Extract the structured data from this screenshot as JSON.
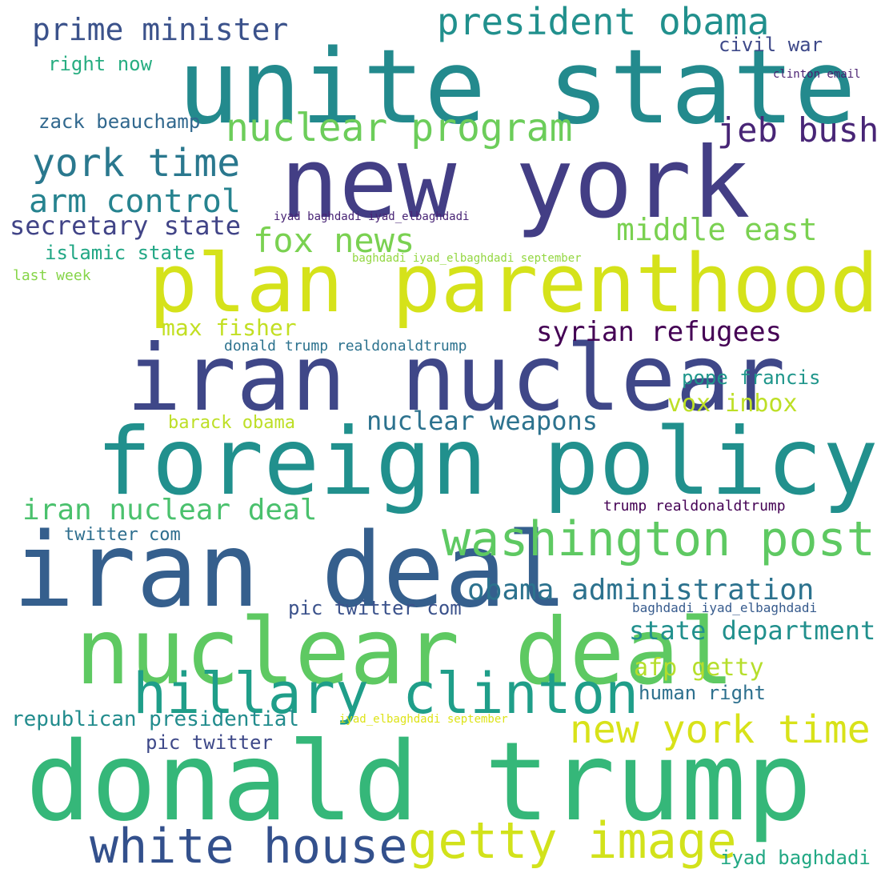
{
  "words": [
    {
      "text": "unite state",
      "color": "#238a8d"
    },
    {
      "text": "new york",
      "color": "#433e85"
    },
    {
      "text": "plan parenthood",
      "color": "#d5e21a"
    },
    {
      "text": "iran nuclear",
      "color": "#3f4788"
    },
    {
      "text": "foreign policy",
      "color": "#21908d"
    },
    {
      "text": "iran deal",
      "color": "#355f8d"
    },
    {
      "text": "nuclear deal",
      "color": "#5ec962"
    },
    {
      "text": "donald trump",
      "color": "#35b779"
    },
    {
      "text": "hillary clinton",
      "color": "#1f9e89"
    },
    {
      "text": "washington post",
      "color": "#5ec962"
    },
    {
      "text": "white house",
      "color": "#33508c"
    },
    {
      "text": "getty image",
      "color": "#d2e21b"
    },
    {
      "text": "new york time",
      "color": "#d8e219"
    },
    {
      "text": "nuclear program",
      "color": "#6ccd5a"
    },
    {
      "text": "president obama",
      "color": "#21908d"
    },
    {
      "text": "prime minister",
      "color": "#3b528b"
    },
    {
      "text": "york time",
      "color": "#2a788e"
    },
    {
      "text": "arm control",
      "color": "#26838f"
    },
    {
      "text": "jeb bush",
      "color": "#482576"
    },
    {
      "text": "fox news",
      "color": "#7ad151"
    },
    {
      "text": "middle east",
      "color": "#7ad151"
    },
    {
      "text": "secretary state",
      "color": "#414487"
    },
    {
      "text": "syrian refugees",
      "color": "#440154"
    },
    {
      "text": "obama administration",
      "color": "#2c728e"
    },
    {
      "text": "nuclear weapons",
      "color": "#2c728e"
    },
    {
      "text": "iran nuclear deal",
      "color": "#4ac16d"
    },
    {
      "text": "state department",
      "color": "#21908d"
    },
    {
      "text": "vox inbox",
      "color": "#bddf26"
    },
    {
      "text": "afp getty",
      "color": "#b5de2b"
    },
    {
      "text": "max fisher",
      "color": "#c2df23"
    },
    {
      "text": "zack beauchamp",
      "color": "#31688e"
    },
    {
      "text": "civil war",
      "color": "#3e4989"
    },
    {
      "text": "right now",
      "color": "#27ad81"
    },
    {
      "text": "islamic state",
      "color": "#22a785"
    },
    {
      "text": "pope francis",
      "color": "#1f968b"
    },
    {
      "text": "pic twitter com",
      "color": "#3b528b"
    },
    {
      "text": "human right",
      "color": "#2d708e"
    },
    {
      "text": "republican presidential",
      "color": "#228c8d"
    },
    {
      "text": "pic twitter",
      "color": "#3e4989"
    },
    {
      "text": "iyad baghdadi",
      "color": "#22a884"
    },
    {
      "text": "barack obama",
      "color": "#bddf26"
    },
    {
      "text": "twitter com",
      "color": "#2e6e8e"
    },
    {
      "text": "last week",
      "color": "#86d549"
    },
    {
      "text": "donald trump realdonaldtrump",
      "color": "#2c728e"
    },
    {
      "text": "trump realdonaldtrump",
      "color": "#440154"
    },
    {
      "text": "clinton email",
      "color": "#481f70"
    },
    {
      "text": "iyad baghdadi iyad_elbaghdadi",
      "color": "#482475"
    },
    {
      "text": "baghdadi iyad_elbaghdadi september",
      "color": "#93d741"
    },
    {
      "text": "baghdadi iyad_elbaghdadi",
      "color": "#375b8d"
    },
    {
      "text": "iyad_elbaghdadi september",
      "color": "#dde318"
    }
  ]
}
